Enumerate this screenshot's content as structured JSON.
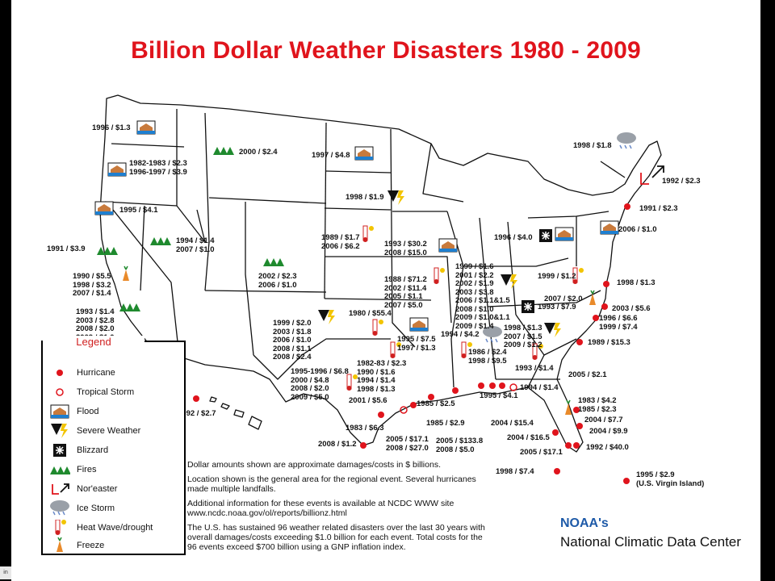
{
  "title": "Billion Dollar Weather Disasters 1980 - 2009",
  "labels": [
    {
      "id": "wa-flood",
      "text": "1996 / $1.3"
    },
    {
      "id": "mt-fire",
      "text": "2000 / $2.4"
    },
    {
      "id": "or-flood",
      "text": "1982-1983 / $2.3\n1996-1997 / $3.9"
    },
    {
      "id": "nd-flood",
      "text": "1997 / $4.8"
    },
    {
      "id": "ca-flood",
      "text": "1995 / $4.1"
    },
    {
      "id": "ca-fire-1991",
      "text": "1991 / $3.9"
    },
    {
      "id": "nv-fire",
      "text": "1994 / $1.4\n2007 / $1.0"
    },
    {
      "id": "ca-freeze",
      "text": "1990 / $5.5\n1998 / $3.2\n2007 / $1.4"
    },
    {
      "id": "ca-fire-s",
      "text": "1993 / $1.4\n2003 / $2.8\n2008 / $2.0\n2009 / $1.0"
    },
    {
      "id": "co-fire",
      "text": "2002 / $2.3\n2006 / $1.0"
    },
    {
      "id": "sd-severe",
      "text": "1998 / $1.9"
    },
    {
      "id": "ks-heat",
      "text": "1989 / $1.7\n2006 / $6.2"
    },
    {
      "id": "ia-flood",
      "text": "1993 / $30.2\n2008 / $15.0"
    },
    {
      "id": "mo-heat",
      "text": "1988 / $71.2\n2002 / $11.4\n2005 / $1.1\n2007 / $5.0"
    },
    {
      "id": "ok-severe",
      "text": "1999 / $2.0\n2003 / $1.8\n2006 / $1.0\n2008 / $1.1\n2008 / $2.4"
    },
    {
      "id": "ok-heat",
      "text": "1980 / $55.4"
    },
    {
      "id": "ar-flood",
      "text": "1995 / $7.5\n1997 / $1.3"
    },
    {
      "id": "tx-heat",
      "text": "1982-83 / $2.3\n1990 / $1.6\n1994 / $1.4\n1998 / $1.3"
    },
    {
      "id": "tx-heat-2",
      "text": "1995-1996 / $6.8\n2000 / $4.8\n2008 / $2.0\n2009 / $5.0"
    },
    {
      "id": "oh-severe",
      "text": "1999 / $1.6\n2001 / $2.2\n2002 / $1.9\n2003 / $3.8\n2006 / $1.1&1.5\n2008 / $1.0\n2009 / $1.0&1.1\n2009 / $1.4"
    },
    {
      "id": "pa-blizzard",
      "text": "1996 / $4.0"
    },
    {
      "id": "me-ice",
      "text": "1998 / $1.8"
    },
    {
      "id": "noreaster",
      "text": "1992 / $2.3"
    },
    {
      "id": "ne-hurr",
      "text": "1991 / $2.3"
    },
    {
      "id": "nj-flood",
      "text": "2006 / $1.0"
    },
    {
      "id": "va-heat",
      "text": "1999 / $1.2"
    },
    {
      "id": "md-hurr",
      "text": "1998 / $1.3"
    },
    {
      "id": "nc-freeze",
      "text": "2007 / $2.0"
    },
    {
      "id": "nc-blizzard",
      "text": "1993 / $7.9"
    },
    {
      "id": "nc-hurr",
      "text": "2003 / $5.6"
    },
    {
      "id": "nc-hurr-2",
      "text": "1996 / $6.6\n1999 / $7.4"
    },
    {
      "id": "sc-hurr",
      "text": "1989 / $15.3"
    },
    {
      "id": "tn-ice",
      "text": "1994 / $4.2"
    },
    {
      "id": "ga-severe",
      "text": "1998 / $1.3\n2007 / $1.5\n2009 / $1.2"
    },
    {
      "id": "ms-heat",
      "text": "1986 / $2.4\n1998 / $9.5"
    },
    {
      "id": "ga-hurr",
      "text": "1993 / $1.4"
    },
    {
      "id": "fl-hurr-2005",
      "text": "2005 / $2.1"
    },
    {
      "id": "al-hurr",
      "text": "1995 / $4.1"
    },
    {
      "id": "fl-ts",
      "text": "1994 / $1.4"
    },
    {
      "id": "fl-freeze",
      "text": "1983 / $4.2\n1985 / $2.3"
    },
    {
      "id": "fl-hurr-a",
      "text": "2004 / $7.7"
    },
    {
      "id": "fl-hurr-b",
      "text": "2004 / $9.9"
    },
    {
      "id": "fl-hurr-c",
      "text": "1992 / $40.0"
    },
    {
      "id": "fl-hurr-d",
      "text": "2004 / $16.5"
    },
    {
      "id": "fl-hurr-e",
      "text": "2005 / $17.1"
    },
    {
      "id": "fl-hurr-f",
      "text": "2004 / $15.4"
    },
    {
      "id": "la-hurr",
      "text": "1985 / $2.5"
    },
    {
      "id": "la-hurr-2",
      "text": "1985 / $2.9"
    },
    {
      "id": "la-hurr-3",
      "text": "2005 / $133.8\n2008 / $5.0"
    },
    {
      "id": "tx-hurr",
      "text": "2005 / $17.1\n2008 / $27.0"
    },
    {
      "id": "tx-hurr-2",
      "text": "2001 / $5.6"
    },
    {
      "id": "tx-hurr-3",
      "text": "1983 / $6.3"
    },
    {
      "id": "tx-hurr-4",
      "text": "2008 / $1.2"
    },
    {
      "id": "hi-hurr",
      "text": "1992 / $2.7"
    },
    {
      "id": "fl-hurr-g",
      "text": "1998 / $7.4"
    },
    {
      "id": "vi-hurr",
      "text": "1995 / $2.9\n(U.S. Virgin Island)"
    }
  ],
  "legend": {
    "title": "Legend",
    "items": [
      {
        "label": "Hurricane",
        "icon": "hurricane-icon"
      },
      {
        "label": "Tropical Storm",
        "icon": "tropical-storm-icon"
      },
      {
        "label": "Flood",
        "icon": "flood-icon"
      },
      {
        "label": "Severe Weather",
        "icon": "severe-weather-icon"
      },
      {
        "label": "Blizzard",
        "icon": "blizzard-icon"
      },
      {
        "label": "Fires",
        "icon": "fires-icon"
      },
      {
        "label": "Nor'easter",
        "icon": "noreaster-icon"
      },
      {
        "label": "Ice Storm",
        "icon": "ice-storm-icon"
      },
      {
        "label": "Heat Wave/drought",
        "icon": "heat-wave-icon"
      },
      {
        "label": "Freeze",
        "icon": "freeze-icon"
      }
    ]
  },
  "notes": [
    "Dollar amounts shown are approximate damages/costs in $ billions.",
    "Location shown is the general area for the regional event. Several hurricanes made multiple landfalls.",
    "Additional information for these events is available at NCDC WWW site www.ncdc.noaa.gov/ol/reports/billionz.html",
    "The U.S. has sustained 96 weather related disasters over the last 30 years with overall damages/costs exceeding $1.0 billion for each event. Total costs for the 96 events exceed $700 billion using a GNP inflation index."
  ],
  "credit": {
    "org": "NOAA's",
    "name": "National Climatic Data Center"
  },
  "colors": {
    "title": "#e0141c",
    "hurricane": "#e0141c",
    "noaa": "#1e5aa8",
    "flood": "#1e7fd0",
    "fire": "#1f8a2e"
  }
}
